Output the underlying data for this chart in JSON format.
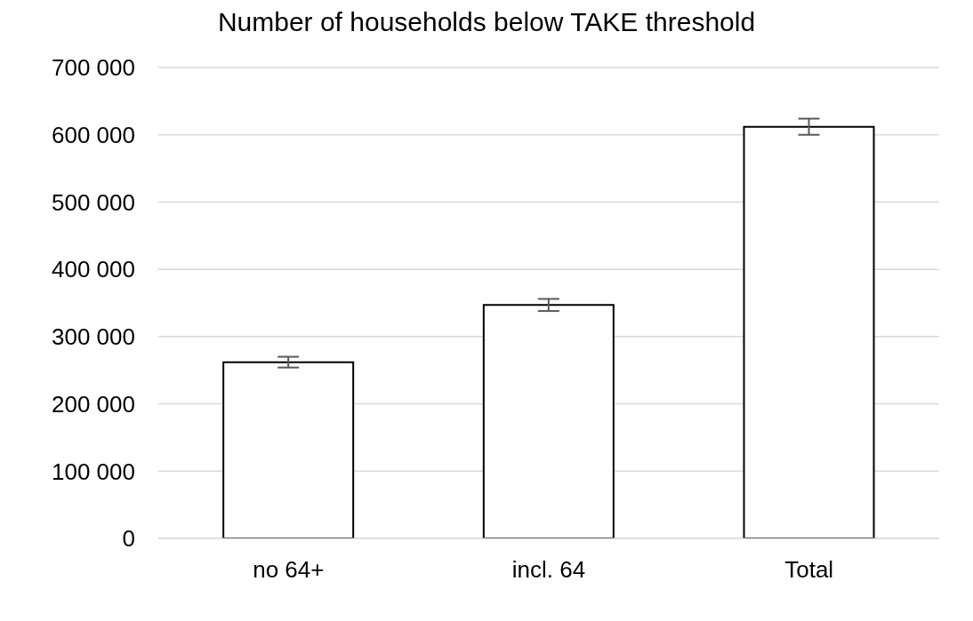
{
  "chart_data": {
    "type": "bar",
    "title": "Number of households below TAKE threshold",
    "categories": [
      "no 64+",
      "incl. 64",
      "Total"
    ],
    "values": [
      262000,
      347000,
      612000
    ],
    "errors": [
      8000,
      9000,
      12000
    ],
    "color": "#ffffff",
    "ylim": [
      0,
      700000
    ],
    "yticks": [
      0,
      100000,
      200000,
      300000,
      400000,
      500000,
      600000,
      700000
    ],
    "grid": "y"
  }
}
